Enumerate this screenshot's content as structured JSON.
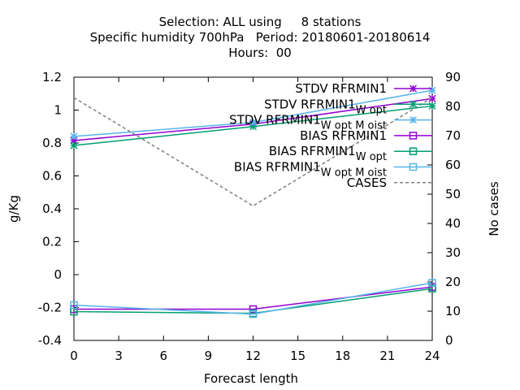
{
  "title": {
    "line1": "Selection: ALL using     8 stations",
    "line2": "Specific humidity 700hPa   Period: 20180601-20180614",
    "line3": "Hours:  00"
  },
  "chart_data": {
    "type": "line",
    "xlabel": "Forecast length",
    "ylabel": "g/Kg",
    "y2label": "No cases",
    "x": [
      0,
      12,
      24
    ],
    "xticks": [
      "0",
      "3",
      "6",
      "9",
      "12",
      "15",
      "18",
      "21",
      "24"
    ],
    "xlim": [
      0,
      24
    ],
    "ylim": [
      -0.4,
      1.2
    ],
    "yticks": [
      "-0.4",
      "-0.2",
      "0",
      "0.2",
      "0.4",
      "0.6",
      "0.8",
      "1",
      "1.2"
    ],
    "y2lim": [
      0,
      90
    ],
    "y2ticks": [
      "0",
      "10",
      "20",
      "30",
      "40",
      "50",
      "60",
      "70",
      "80",
      "90"
    ],
    "grid": false,
    "legend_position": "top-right",
    "series": [
      {
        "name": "STDV RFRMIN1",
        "legend": {
          "base": "STDV RFRMIN1",
          "sub": ""
        },
        "axis": "y",
        "color": "#9400d3",
        "marker": "star",
        "dash": false,
        "values": [
          0.815,
          0.915,
          1.07
        ]
      },
      {
        "name": "STDV RFRMIN1_W_opt",
        "legend": {
          "base": "STDV RFRMIN1",
          "sub": "W opt"
        },
        "axis": "y",
        "color": "#009e73",
        "marker": "star",
        "dash": false,
        "values": [
          0.785,
          0.9,
          1.025
        ]
      },
      {
        "name": "STDV RFRMIN1_W_opt_M_oist",
        "legend": {
          "base": "STDV RFRMIN1",
          "sub": "W opt M oist"
        },
        "axis": "y",
        "color": "#56b4e9",
        "marker": "star",
        "dash": false,
        "values": [
          0.84,
          0.925,
          1.12
        ]
      },
      {
        "name": "BIAS RFRMIN1",
        "legend": {
          "base": "BIAS RFRMIN1",
          "sub": ""
        },
        "axis": "y",
        "color": "#9400d3",
        "marker": "square",
        "dash": false,
        "values": [
          -0.21,
          -0.21,
          -0.075
        ]
      },
      {
        "name": "BIAS RFRMIN1_W_opt",
        "legend": {
          "base": "BIAS RFRMIN1",
          "sub": "W opt"
        },
        "axis": "y",
        "color": "#009e73",
        "marker": "square",
        "dash": false,
        "values": [
          -0.225,
          -0.235,
          -0.085
        ]
      },
      {
        "name": "BIAS RFRMIN1_W_opt_M_oist",
        "legend": {
          "base": "BIAS RFRMIN1",
          "sub": "W opt M oist"
        },
        "axis": "y",
        "color": "#56b4e9",
        "marker": "square",
        "dash": false,
        "values": [
          -0.185,
          -0.24,
          -0.05
        ]
      },
      {
        "name": "CASES",
        "legend": {
          "base": "CASES",
          "sub": ""
        },
        "axis": "y2",
        "color": "#808080",
        "marker": "none",
        "dash": true,
        "values": [
          83,
          46,
          83
        ]
      }
    ]
  }
}
